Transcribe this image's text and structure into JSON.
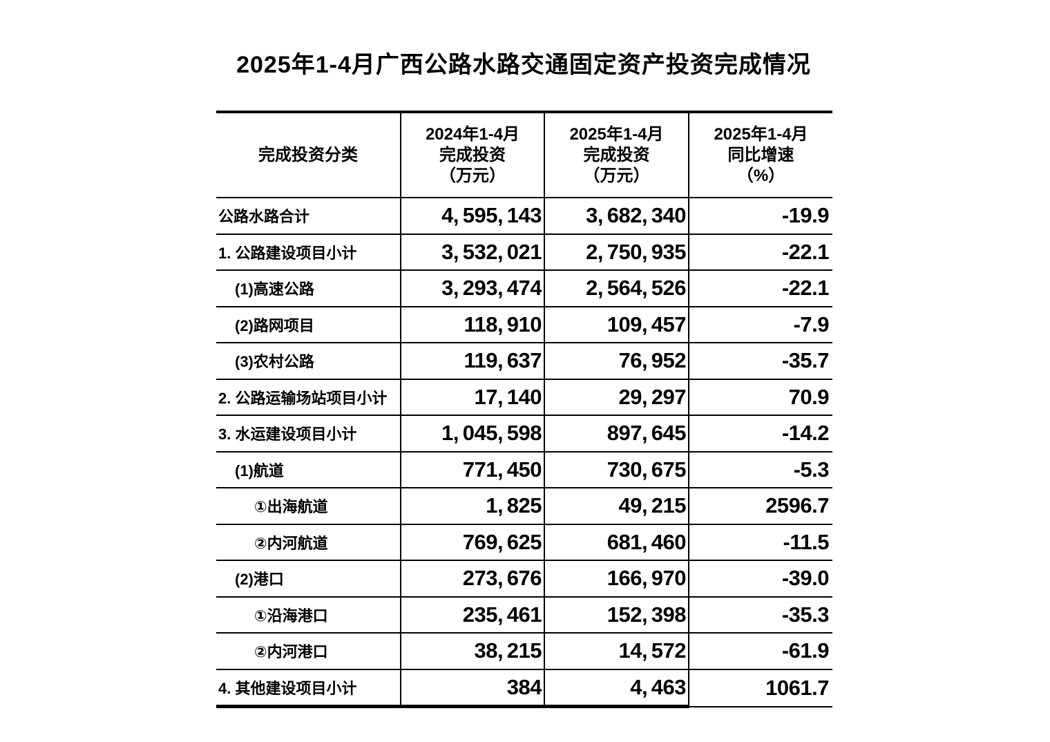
{
  "title": "2025年1-4月广西公路水路交通固定资产投资完成情况",
  "colors": {
    "text": "#000000",
    "background": "#ffffff",
    "border": "#000000"
  },
  "table": {
    "header": {
      "category": "完成投资分类",
      "col2024": [
        "2024年1-4月",
        "完成投资",
        "（万元）"
      ],
      "col2025": [
        "2025年1-4月",
        "完成投资",
        "（万元）"
      ],
      "colGrowth": [
        "2025年1-4月",
        "同比增速",
        "（%）"
      ]
    },
    "rows": [
      {
        "label": "公路水路合计",
        "indent": 0,
        "v2024": "4,595,143",
        "v2025": "3,682,340",
        "growth": "-19.9"
      },
      {
        "label": "1. 公路建设项目小计",
        "indent": 0,
        "v2024": "3,532,021",
        "v2025": "2,750,935",
        "growth": "-22.1"
      },
      {
        "label": "(1)高速公路",
        "indent": 1,
        "v2024": "3,293,474",
        "v2025": "2,564,526",
        "growth": "-22.1"
      },
      {
        "label": "(2)路网项目",
        "indent": 1,
        "v2024": "118,910",
        "v2025": "109,457",
        "growth": "-7.9"
      },
      {
        "label": "(3)农村公路",
        "indent": 1,
        "v2024": "119,637",
        "v2025": "76,952",
        "growth": "-35.7"
      },
      {
        "label": "2. 公路运输场站项目小计",
        "indent": 0,
        "v2024": "17,140",
        "v2025": "29,297",
        "growth": "70.9"
      },
      {
        "label": "3. 水运建设项目小计",
        "indent": 0,
        "v2024": "1,045,598",
        "v2025": "897,645",
        "growth": "-14.2"
      },
      {
        "label": "(1)航道",
        "indent": 1,
        "v2024": "771,450",
        "v2025": "730,675",
        "growth": "-5.3"
      },
      {
        "label": "①出海航道",
        "indent": 2,
        "v2024": "1,825",
        "v2025": "49,215",
        "growth": "2596.7"
      },
      {
        "label": "②内河航道",
        "indent": 2,
        "v2024": "769,625",
        "v2025": "681,460",
        "growth": "-11.5"
      },
      {
        "label": "(2)港口",
        "indent": 1,
        "v2024": "273,676",
        "v2025": "166,970",
        "growth": "-39.0"
      },
      {
        "label": "①沿海港口",
        "indent": 2,
        "v2024": "235,461",
        "v2025": "152,398",
        "growth": "-35.3"
      },
      {
        "label": "②内河港口",
        "indent": 2,
        "v2024": "38,215",
        "v2025": "14,572",
        "growth": "-61.9"
      },
      {
        "label": "4. 其他建设项目小计",
        "indent": 0,
        "v2024": "384",
        "v2025": "4,463",
        "growth": "1061.7"
      }
    ]
  },
  "chart_data": {
    "type": "table",
    "title": "2025年1-4月广西公路水路交通固定资产投资完成情况",
    "columns": [
      "完成投资分类",
      "2024年1-4月完成投资（万元）",
      "2025年1-4月完成投资（万元）",
      "2025年1-4月同比增速（%）"
    ],
    "rows": [
      [
        "公路水路合计",
        4595143,
        3682340,
        -19.9
      ],
      [
        "1. 公路建设项目小计",
        3532021,
        2750935,
        -22.1
      ],
      [
        "(1)高速公路",
        3293474,
        2564526,
        -22.1
      ],
      [
        "(2)路网项目",
        118910,
        109457,
        -7.9
      ],
      [
        "(3)农村公路",
        119637,
        76952,
        -35.7
      ],
      [
        "2. 公路运输场站项目小计",
        17140,
        29297,
        70.9
      ],
      [
        "3. 水运建设项目小计",
        1045598,
        897645,
        -14.2
      ],
      [
        "(1)航道",
        771450,
        730675,
        -5.3
      ],
      [
        "①出海航道",
        1825,
        49215,
        2596.7
      ],
      [
        "②内河航道",
        769625,
        681460,
        -11.5
      ],
      [
        "(2)港口",
        273676,
        166970,
        -39.0
      ],
      [
        "①沿海港口",
        235461,
        152398,
        -35.3
      ],
      [
        "②内河港口",
        38215,
        14572,
        -61.9
      ],
      [
        "4. 其他建设项目小计",
        384,
        4463,
        1061.7
      ]
    ]
  }
}
